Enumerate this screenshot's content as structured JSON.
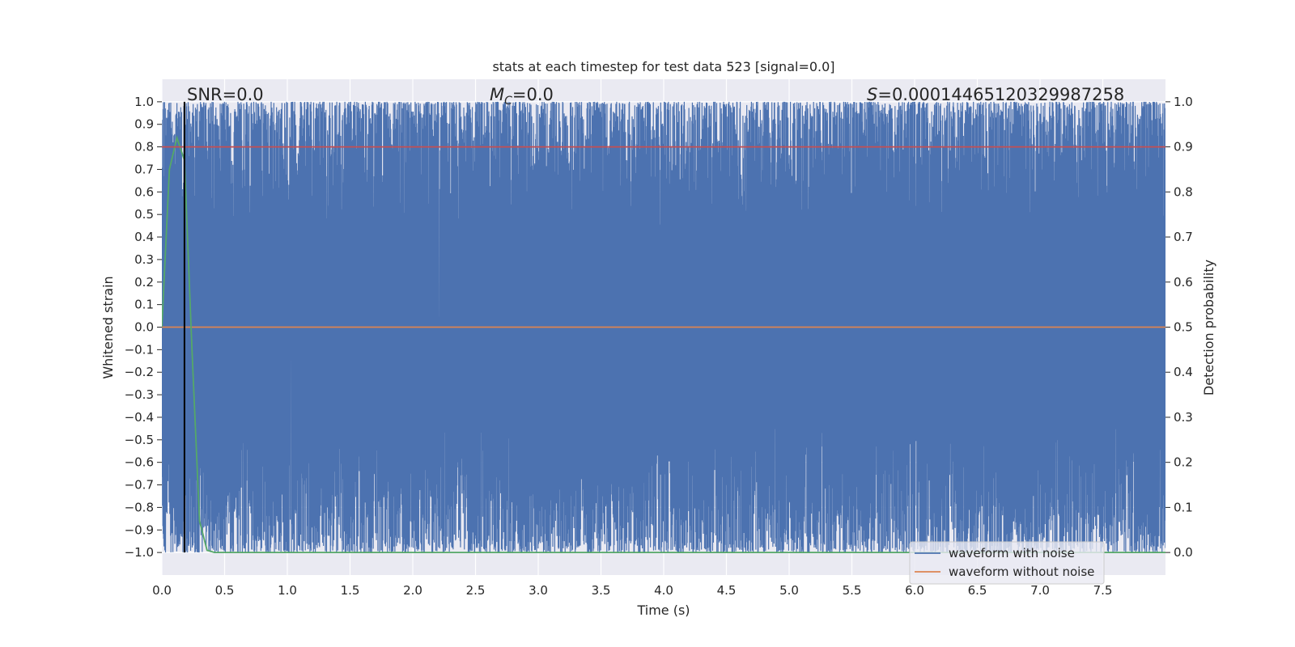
{
  "chart_data": {
    "type": "line",
    "title": "stats at each timestep for test data 523 [signal=0.0]",
    "xlabel": "Time (s)",
    "ylabel": "Whitened strain",
    "y2label": "Detection probability",
    "xlim": [
      0,
      8
    ],
    "ylim": [
      -1.1,
      1.1
    ],
    "y2lim": [
      -0.05,
      1.05
    ],
    "x_ticks": [
      0.0,
      0.5,
      1.0,
      1.5,
      2.0,
      2.5,
      3.0,
      3.5,
      4.0,
      4.5,
      5.0,
      5.5,
      6.0,
      6.5,
      7.0,
      7.5
    ],
    "x_tick_labels": [
      "0.0",
      "0.5",
      "1.0",
      "1.5",
      "2.0",
      "2.5",
      "3.0",
      "3.5",
      "4.0",
      "4.5",
      "5.0",
      "5.5",
      "6.0",
      "6.5",
      "7.0",
      "7.5"
    ],
    "y_ticks": [
      1.0,
      0.9,
      0.8,
      0.7,
      0.6,
      0.5,
      0.4,
      0.3,
      0.2,
      0.1,
      0.0,
      -0.1,
      -0.2,
      -0.3,
      -0.4,
      -0.5,
      -0.6,
      -0.7,
      -0.8,
      -0.9,
      -1.0
    ],
    "y_tick_labels": [
      "1.0",
      "0.9",
      "0.8",
      "0.7",
      "0.6",
      "0.5",
      "0.4",
      "0.3",
      "0.2",
      "0.1",
      "0.0",
      "−0.1",
      "−0.2",
      "−0.3",
      "−0.4",
      "−0.5",
      "−0.6",
      "−0.7",
      "−0.8",
      "−0.9",
      "−1.0"
    ],
    "y2_ticks": [
      1.0,
      0.9,
      0.8,
      0.7,
      0.6,
      0.5,
      0.4,
      0.3,
      0.2,
      0.1,
      0.0
    ],
    "y2_tick_labels": [
      "1.0",
      "0.9",
      "0.8",
      "0.7",
      "0.6",
      "0.5",
      "0.4",
      "0.3",
      "0.2",
      "0.1",
      "0.0"
    ],
    "grid": true,
    "legend_position": "lower-right",
    "series": [
      {
        "name": "waveform with noise",
        "axis": "left",
        "color": "#4c72b0",
        "note_values": "dense noise oscillating between about -1.0 and 1.0 for the full 0-8 s span",
        "noise_range": [
          -1.0,
          1.0
        ],
        "noise_seed": 523
      },
      {
        "name": "waveform without noise",
        "axis": "left",
        "color": "#dd8452",
        "x": [
          0.0,
          8.0
        ],
        "y": [
          0.0,
          0.0
        ]
      },
      {
        "axis": "right",
        "color": "#55a868",
        "x": [
          0.0,
          0.06,
          0.12,
          0.18,
          0.24,
          0.3,
          0.36,
          0.42,
          8.0
        ],
        "y": [
          0.5,
          0.85,
          0.92,
          0.87,
          0.45,
          0.07,
          0.005,
          0.0,
          0.0
        ]
      },
      {
        "axis": "right",
        "color": "#c44e52",
        "x": [
          0.0,
          8.0
        ],
        "y": [
          0.9,
          0.9
        ]
      }
    ],
    "vline": {
      "x": 0.18,
      "color": "#000000"
    },
    "annotations": [
      {
        "prefix": "SNR",
        "text": "=0.0"
      },
      {
        "prefix": "M",
        "sub": "C",
        "text": "=0.0",
        "italic_prefix": true
      },
      {
        "prefix": "S",
        "text": "=0.00014465120329987258",
        "italic_prefix": true
      }
    ],
    "colors": {
      "plot_bg": "#eaeaf2",
      "grid": "#ffffff",
      "noise": "#4c72b0",
      "clean": "#dd8452",
      "prob": "#55a868",
      "threshold": "#c44e52"
    }
  }
}
